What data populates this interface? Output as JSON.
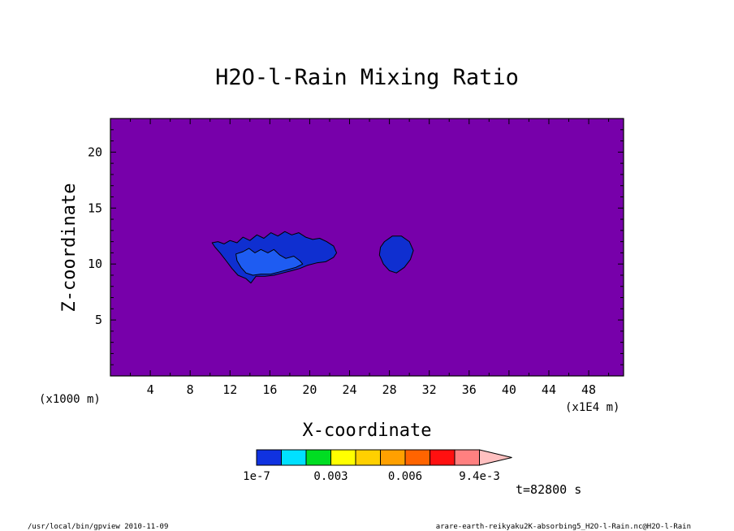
{
  "chart_data": {
    "type": "contour",
    "title": "H2O-l-Rain Mixing Ratio",
    "xlabel": "X-coordinate",
    "ylabel": "Z-coordinate",
    "x_unit_left": "(x1000 m)",
    "x_unit_right": "(x1E4 m)",
    "xlim": [
      0,
      51.5
    ],
    "ylim": [
      0,
      23
    ],
    "xticks": [
      4,
      8,
      12,
      16,
      20,
      24,
      28,
      32,
      36,
      40,
      44,
      48
    ],
    "yticks": [
      5,
      10,
      15,
      20
    ],
    "background_color": "#7700aa",
    "regions": [
      {
        "name": "cloud-left",
        "color": "#0f2fd0",
        "points": [
          [
            10.2,
            11.9
          ],
          [
            10.8,
            12.0
          ],
          [
            11.4,
            11.8
          ],
          [
            12.0,
            12.1
          ],
          [
            12.7,
            11.9
          ],
          [
            13.3,
            12.4
          ],
          [
            14.0,
            12.1
          ],
          [
            14.7,
            12.6
          ],
          [
            15.4,
            12.3
          ],
          [
            16.1,
            12.8
          ],
          [
            16.8,
            12.5
          ],
          [
            17.5,
            12.9
          ],
          [
            18.2,
            12.6
          ],
          [
            18.9,
            12.8
          ],
          [
            19.6,
            12.4
          ],
          [
            20.3,
            12.2
          ],
          [
            21.0,
            12.3
          ],
          [
            21.7,
            12.0
          ],
          [
            22.4,
            11.6
          ],
          [
            22.7,
            11.0
          ],
          [
            22.4,
            10.6
          ],
          [
            21.6,
            10.2
          ],
          [
            20.7,
            10.1
          ],
          [
            19.8,
            9.9
          ],
          [
            19.0,
            9.6
          ],
          [
            18.2,
            9.4
          ],
          [
            17.3,
            9.2
          ],
          [
            16.4,
            9.0
          ],
          [
            15.5,
            8.9
          ],
          [
            14.6,
            8.9
          ],
          [
            14.1,
            8.3
          ],
          [
            13.6,
            8.7
          ],
          [
            12.8,
            9.0
          ],
          [
            12.2,
            9.6
          ],
          [
            11.6,
            10.3
          ],
          [
            11.0,
            11.0
          ],
          [
            10.5,
            11.5
          ]
        ]
      },
      {
        "name": "cloud-left-core",
        "color": "#1e5cf2",
        "points": [
          [
            12.6,
            10.9
          ],
          [
            13.3,
            11.1
          ],
          [
            13.9,
            11.4
          ],
          [
            14.5,
            11.0
          ],
          [
            15.1,
            11.3
          ],
          [
            15.8,
            11.0
          ],
          [
            16.4,
            11.3
          ],
          [
            17.0,
            10.8
          ],
          [
            17.6,
            10.5
          ],
          [
            18.4,
            10.7
          ],
          [
            19.0,
            10.3
          ],
          [
            19.3,
            10.0
          ],
          [
            18.6,
            9.7
          ],
          [
            17.8,
            9.5
          ],
          [
            17.0,
            9.3
          ],
          [
            16.1,
            9.1
          ],
          [
            15.1,
            9.1
          ],
          [
            14.3,
            9.0
          ],
          [
            13.6,
            9.2
          ],
          [
            13.1,
            9.7
          ],
          [
            12.7,
            10.3
          ]
        ]
      },
      {
        "name": "cloud-right",
        "color": "#0f2fd0",
        "points": [
          [
            27.5,
            12.0
          ],
          [
            28.3,
            12.5
          ],
          [
            29.2,
            12.5
          ],
          [
            30.0,
            12.0
          ],
          [
            30.4,
            11.2
          ],
          [
            30.1,
            10.4
          ],
          [
            29.5,
            9.7
          ],
          [
            28.7,
            9.2
          ],
          [
            28.0,
            9.4
          ],
          [
            27.4,
            10.0
          ],
          [
            27.0,
            10.8
          ],
          [
            27.1,
            11.5
          ]
        ]
      }
    ],
    "colorbar": {
      "colors": [
        "#1032e0",
        "#00e0ff",
        "#00dd22",
        "#ffff00",
        "#ffd000",
        "#ffa000",
        "#ff6400",
        "#ff1010",
        "#ff8080",
        "#ffc0c0"
      ],
      "labels": [
        "1e-7",
        "0.003",
        "0.006",
        "9.4e-3"
      ]
    }
  },
  "time_label": "t=82800 s",
  "footer_left": "/usr/local/bin/gpview  2010-11-09",
  "footer_right": "arare-earth-reikyaku2K-absorbing5_H2O-l-Rain.nc@H2O-l-Rain"
}
